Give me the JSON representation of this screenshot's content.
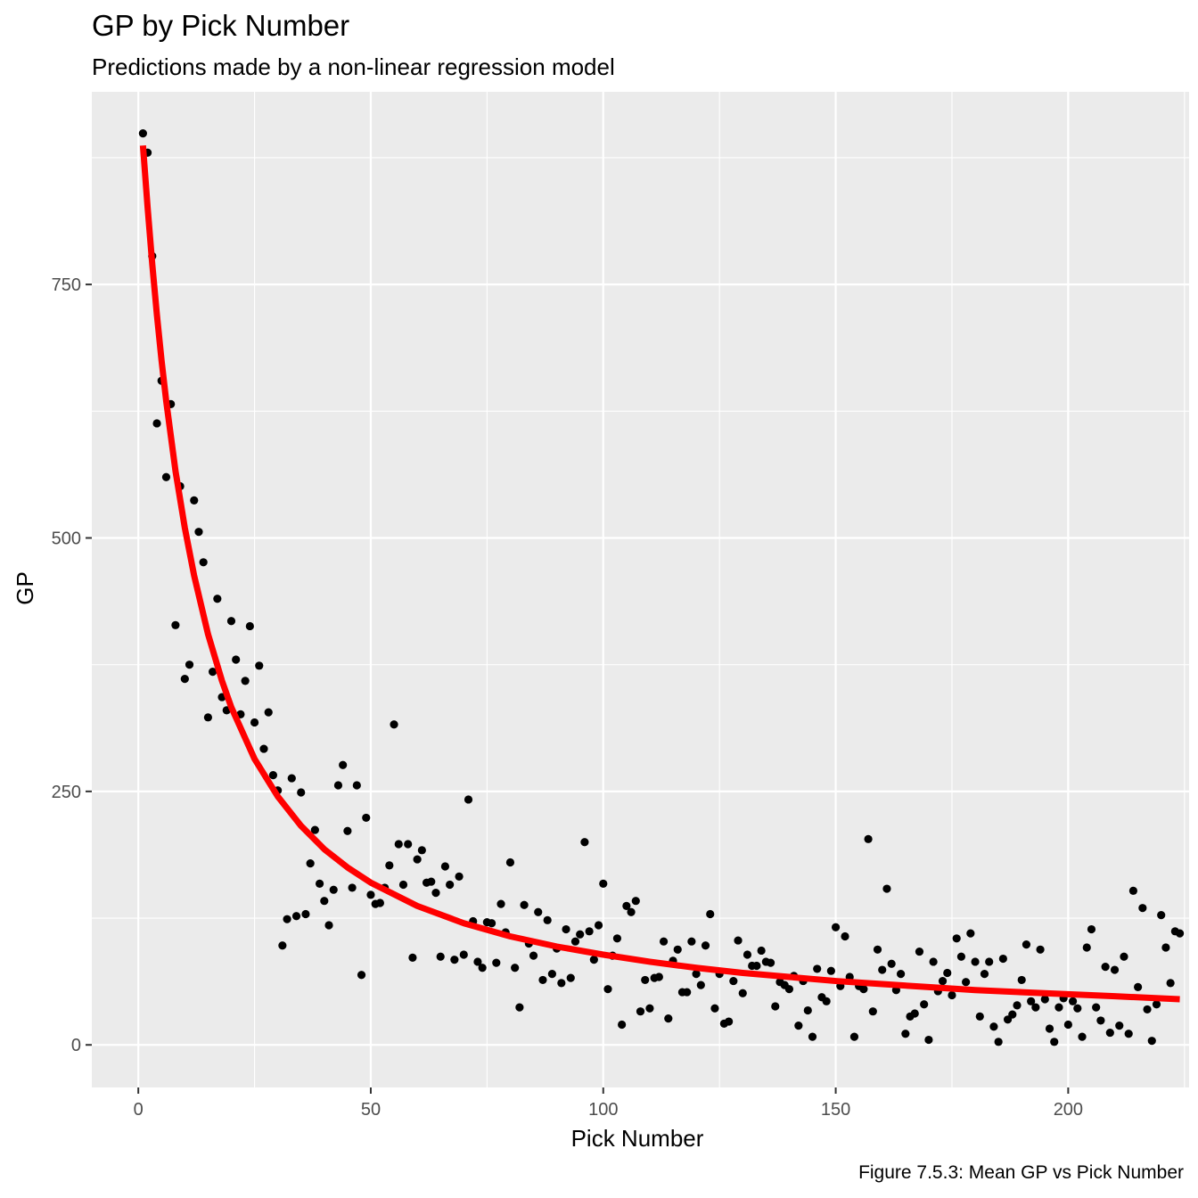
{
  "chart_data": {
    "type": "scatter",
    "title": "GP by Pick Number",
    "subtitle": "Predictions made by a non-linear regression model",
    "caption": "Figure 7.5.3: Mean GP vs Pick Number",
    "xlabel": "Pick Number",
    "ylabel": "GP",
    "xlim": [
      -10,
      226
    ],
    "ylim": [
      -42,
      940
    ],
    "x_ticks": [
      0,
      50,
      100,
      150,
      200
    ],
    "y_ticks": [
      0,
      250,
      500,
      750
    ],
    "grid": true,
    "panel_background": "#ebebeb",
    "point_color": "#000000",
    "line_color": "#ff0000",
    "points": [
      [
        1,
        899
      ],
      [
        2,
        880
      ],
      [
        3,
        778
      ],
      [
        4,
        613
      ],
      [
        5,
        655
      ],
      [
        6,
        560
      ],
      [
        7,
        632
      ],
      [
        8,
        414
      ],
      [
        9,
        551
      ],
      [
        10,
        361
      ],
      [
        11,
        375
      ],
      [
        12,
        537
      ],
      [
        13,
        506
      ],
      [
        14,
        476
      ],
      [
        15,
        323
      ],
      [
        16,
        368
      ],
      [
        17,
        440
      ],
      [
        18,
        343
      ],
      [
        19,
        330
      ],
      [
        20,
        418
      ],
      [
        21,
        380
      ],
      [
        22,
        326
      ],
      [
        23,
        359
      ],
      [
        24,
        413
      ],
      [
        25,
        318
      ],
      [
        26,
        374
      ],
      [
        27,
        292
      ],
      [
        28,
        328
      ],
      [
        29,
        266
      ],
      [
        30,
        251
      ],
      [
        31,
        98
      ],
      [
        32,
        124
      ],
      [
        33,
        263
      ],
      [
        34,
        127
      ],
      [
        35,
        249
      ],
      [
        36,
        129
      ],
      [
        37,
        179
      ],
      [
        38,
        212
      ],
      [
        39,
        159
      ],
      [
        40,
        142
      ],
      [
        41,
        118
      ],
      [
        42,
        153
      ],
      [
        43,
        256
      ],
      [
        44,
        276
      ],
      [
        45,
        211
      ],
      [
        46,
        155
      ],
      [
        47,
        256
      ],
      [
        48,
        69
      ],
      [
        49,
        224
      ],
      [
        50,
        148
      ],
      [
        51,
        139
      ],
      [
        52,
        140
      ],
      [
        53,
        155
      ],
      [
        54,
        177
      ],
      [
        55,
        316
      ],
      [
        56,
        198
      ],
      [
        57,
        158
      ],
      [
        58,
        198
      ],
      [
        59,
        86
      ],
      [
        60,
        183
      ],
      [
        61,
        192
      ],
      [
        62,
        160
      ],
      [
        63,
        161
      ],
      [
        64,
        150
      ],
      [
        65,
        87
      ],
      [
        66,
        176
      ],
      [
        67,
        158
      ],
      [
        68,
        84
      ],
      [
        69,
        166
      ],
      [
        70,
        89
      ],
      [
        71,
        242
      ],
      [
        72,
        122
      ],
      [
        73,
        82
      ],
      [
        74,
        76
      ],
      [
        75,
        121
      ],
      [
        76,
        120
      ],
      [
        77,
        81
      ],
      [
        78,
        139
      ],
      [
        79,
        111
      ],
      [
        80,
        180
      ],
      [
        81,
        76
      ],
      [
        82,
        37
      ],
      [
        83,
        138
      ],
      [
        84,
        100
      ],
      [
        85,
        88
      ],
      [
        86,
        131
      ],
      [
        87,
        64
      ],
      [
        88,
        123
      ],
      [
        89,
        70
      ],
      [
        90,
        95
      ],
      [
        91,
        61
      ],
      [
        92,
        114
      ],
      [
        93,
        66
      ],
      [
        94,
        102
      ],
      [
        95,
        109
      ],
      [
        96,
        200
      ],
      [
        97,
        112
      ],
      [
        98,
        84
      ],
      [
        99,
        118
      ],
      [
        100,
        159
      ],
      [
        101,
        55
      ],
      [
        102,
        88
      ],
      [
        103,
        105
      ],
      [
        104,
        20
      ],
      [
        105,
        137
      ],
      [
        106,
        131
      ],
      [
        107,
        142
      ],
      [
        108,
        33
      ],
      [
        109,
        64
      ],
      [
        110,
        36
      ],
      [
        111,
        66
      ],
      [
        112,
        67
      ],
      [
        113,
        102
      ],
      [
        114,
        26
      ],
      [
        115,
        83
      ],
      [
        116,
        94
      ],
      [
        117,
        52
      ],
      [
        118,
        52
      ],
      [
        119,
        102
      ],
      [
        120,
        70
      ],
      [
        121,
        59
      ],
      [
        122,
        98
      ],
      [
        123,
        129
      ],
      [
        124,
        36
      ],
      [
        125,
        70
      ],
      [
        126,
        21
      ],
      [
        127,
        23
      ],
      [
        128,
        63
      ],
      [
        129,
        103
      ],
      [
        130,
        51
      ],
      [
        131,
        89
      ],
      [
        132,
        78
      ],
      [
        133,
        78
      ],
      [
        134,
        93
      ],
      [
        135,
        82
      ],
      [
        136,
        81
      ],
      [
        137,
        38
      ],
      [
        138,
        62
      ],
      [
        139,
        59
      ],
      [
        140,
        55
      ],
      [
        141,
        68
      ],
      [
        142,
        19
      ],
      [
        143,
        63
      ],
      [
        144,
        34
      ],
      [
        145,
        8
      ],
      [
        146,
        75
      ],
      [
        147,
        47
      ],
      [
        148,
        43
      ],
      [
        149,
        73
      ],
      [
        150,
        116
      ],
      [
        151,
        58
      ],
      [
        152,
        107
      ],
      [
        153,
        67
      ],
      [
        154,
        8
      ],
      [
        155,
        58
      ],
      [
        156,
        55
      ],
      [
        157,
        203
      ],
      [
        158,
        33
      ],
      [
        159,
        94
      ],
      [
        160,
        74
      ],
      [
        161,
        154
      ],
      [
        162,
        80
      ],
      [
        163,
        54
      ],
      [
        164,
        70
      ],
      [
        165,
        11
      ],
      [
        166,
        28
      ],
      [
        167,
        31
      ],
      [
        168,
        92
      ],
      [
        169,
        40
      ],
      [
        170,
        5
      ],
      [
        171,
        82
      ],
      [
        172,
        53
      ],
      [
        173,
        63
      ],
      [
        174,
        71
      ],
      [
        175,
        49
      ],
      [
        176,
        105
      ],
      [
        177,
        87
      ],
      [
        178,
        62
      ],
      [
        179,
        110
      ],
      [
        180,
        82
      ],
      [
        181,
        28
      ],
      [
        182,
        70
      ],
      [
        183,
        82
      ],
      [
        184,
        18
      ],
      [
        185,
        3
      ],
      [
        186,
        85
      ],
      [
        187,
        25
      ],
      [
        188,
        30
      ],
      [
        189,
        39
      ],
      [
        190,
        64
      ],
      [
        191,
        99
      ],
      [
        192,
        43
      ],
      [
        193,
        37
      ],
      [
        194,
        94
      ],
      [
        195,
        45
      ],
      [
        196,
        16
      ],
      [
        197,
        3
      ],
      [
        198,
        37
      ],
      [
        199,
        46
      ],
      [
        200,
        20
      ],
      [
        201,
        43
      ],
      [
        202,
        36
      ],
      [
        203,
        8
      ],
      [
        204,
        96
      ],
      [
        205,
        114
      ],
      [
        206,
        37
      ],
      [
        207,
        24
      ],
      [
        208,
        77
      ],
      [
        209,
        12
      ],
      [
        210,
        74
      ],
      [
        211,
        19
      ],
      [
        212,
        87
      ],
      [
        213,
        11
      ],
      [
        214,
        152
      ],
      [
        215,
        57
      ],
      [
        216,
        135
      ],
      [
        217,
        35
      ],
      [
        218,
        4
      ],
      [
        219,
        40
      ],
      [
        220,
        128
      ],
      [
        221,
        96
      ],
      [
        222,
        61
      ],
      [
        223,
        112
      ],
      [
        224,
        110
      ]
    ],
    "fit_line": {
      "type": "non-linear regression",
      "x": [
        1,
        2,
        3,
        4,
        5,
        6,
        8,
        10,
        12,
        15,
        18,
        20,
        25,
        30,
        35,
        40,
        45,
        50,
        60,
        70,
        80,
        90,
        100,
        110,
        120,
        130,
        140,
        150,
        160,
        170,
        180,
        190,
        200,
        210,
        224
      ],
      "y": [
        887,
        826,
        770,
        720,
        675,
        635,
        566,
        510,
        463,
        405,
        359,
        333,
        282,
        245,
        216,
        193,
        175,
        160,
        137,
        120,
        107,
        97,
        89,
        82,
        76,
        71,
        67,
        63,
        60,
        57,
        54,
        52,
        50,
        48,
        45
      ]
    }
  }
}
